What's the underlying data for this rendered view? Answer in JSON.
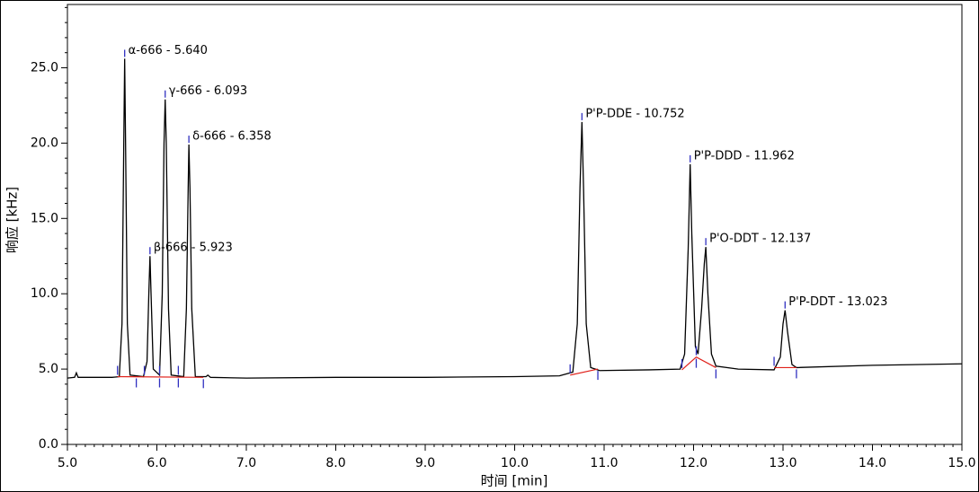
{
  "chart_data": {
    "type": "line",
    "x_label": "时间 [min]",
    "y_label": "响应 [kHz]",
    "xlim": [
      5,
      15
    ],
    "ylim": [
      0,
      29.2
    ],
    "xticks": [
      {
        "value": 5,
        "label": "5.0"
      },
      {
        "value": 6,
        "label": "6.0"
      },
      {
        "value": 7,
        "label": "7.0"
      },
      {
        "value": 8,
        "label": "8.0"
      },
      {
        "value": 9,
        "label": "9.0"
      },
      {
        "value": 10,
        "label": "10.0"
      },
      {
        "value": 11,
        "label": "11.0"
      },
      {
        "value": 12,
        "label": "12.0"
      },
      {
        "value": 13,
        "label": "13.0"
      },
      {
        "value": 14,
        "label": "14.0"
      },
      {
        "value": 15,
        "label": "15.0"
      }
    ],
    "yticks": [
      {
        "value": 0,
        "label": "0.0"
      },
      {
        "value": 5,
        "label": "5.0"
      },
      {
        "value": 10,
        "label": "10.0"
      },
      {
        "value": 15,
        "label": "15.0"
      },
      {
        "value": 20,
        "label": "20.0"
      },
      {
        "value": 25,
        "label": "25.0"
      }
    ],
    "series": [
      {
        "color": "#000000",
        "x": [
          5.0,
          5.08,
          5.1,
          5.12,
          5.5,
          5.58,
          5.61,
          5.63,
          5.64,
          5.65,
          5.67,
          5.7,
          5.85,
          5.89,
          5.91,
          5.923,
          5.935,
          5.96,
          6.03,
          6.06,
          6.08,
          6.093,
          6.105,
          6.13,
          6.16,
          6.3,
          6.33,
          6.35,
          6.358,
          6.37,
          6.39,
          6.43,
          6.55,
          6.57,
          6.6,
          7.0,
          8.0,
          9.0,
          10.0,
          10.5,
          10.65,
          10.7,
          10.73,
          10.752,
          10.77,
          10.8,
          10.85,
          10.95,
          11.5,
          11.85,
          11.9,
          11.94,
          11.962,
          11.98,
          12.02,
          12.05,
          12.09,
          12.12,
          12.137,
          12.16,
          12.2,
          12.25,
          12.5,
          12.9,
          12.97,
          13.0,
          13.023,
          13.05,
          13.1,
          13.15,
          14.0,
          15.0
        ],
        "values": [
          4.4,
          4.45,
          4.75,
          4.45,
          4.45,
          4.5,
          8,
          20,
          25.6,
          20,
          8,
          4.6,
          4.5,
          5.5,
          10,
          12.5,
          10,
          5,
          4.6,
          10,
          20,
          22.9,
          20,
          9,
          4.6,
          4.5,
          9,
          17,
          19.9,
          17,
          9,
          4.5,
          4.5,
          4.6,
          4.45,
          4.4,
          4.45,
          4.45,
          4.5,
          4.55,
          4.8,
          8,
          17,
          21.4,
          17,
          8,
          5.1,
          4.9,
          4.95,
          5.0,
          6,
          13,
          18.6,
          14,
          6.5,
          6,
          9,
          12,
          13.1,
          10,
          6,
          5.2,
          5.0,
          4.95,
          5.8,
          8,
          8.9,
          7.5,
          5.3,
          5.1,
          5.25,
          5.35
        ]
      },
      {
        "color": "#e0201a",
        "x": [
          5.56,
          6.52,
          null,
          10.62,
          10.93,
          null,
          11.87,
          12.03,
          12.25,
          null,
          12.9,
          13.15
        ],
        "values": [
          4.5,
          4.45,
          null,
          4.6,
          5.0,
          null,
          4.95,
          5.8,
          5.1,
          null,
          5.1,
          5.1
        ]
      }
    ],
    "boundaries": [
      {
        "x": 5.56,
        "y": 4.5,
        "side": "start"
      },
      {
        "x": 5.77,
        "y": 4.5,
        "side": "end"
      },
      {
        "x": 5.86,
        "y": 4.5,
        "side": "start"
      },
      {
        "x": 6.03,
        "y": 4.5,
        "side": "end"
      },
      {
        "x": 6.03,
        "y": 4.5,
        "side": "start"
      },
      {
        "x": 6.24,
        "y": 4.5,
        "side": "end"
      },
      {
        "x": 6.24,
        "y": 4.5,
        "side": "start"
      },
      {
        "x": 6.52,
        "y": 4.45,
        "side": "end"
      },
      {
        "x": 10.62,
        "y": 4.6,
        "side": "start"
      },
      {
        "x": 10.93,
        "y": 5.0,
        "side": "end"
      },
      {
        "x": 11.87,
        "y": 4.95,
        "side": "start"
      },
      {
        "x": 12.03,
        "y": 5.8,
        "side": "end"
      },
      {
        "x": 12.03,
        "y": 5.8,
        "side": "start"
      },
      {
        "x": 12.25,
        "y": 5.1,
        "side": "end"
      },
      {
        "x": 12.9,
        "y": 5.1,
        "side": "start"
      },
      {
        "x": 13.15,
        "y": 5.1,
        "side": "end"
      }
    ],
    "boundary_color": "#3030c0",
    "annotations": [
      {
        "text": "α-666 - 5.640",
        "x": 5.64,
        "y": 25.6
      },
      {
        "text": "β-666 - 5.923",
        "x": 5.923,
        "y": 12.5
      },
      {
        "text": "γ-666 - 6.093",
        "x": 6.093,
        "y": 22.9
      },
      {
        "text": "δ-666 - 6.358",
        "x": 6.358,
        "y": 19.9
      },
      {
        "text": "P'P-DDE - 10.752",
        "x": 10.752,
        "y": 21.4
      },
      {
        "text": "P'P-DDD - 11.962",
        "x": 11.962,
        "y": 18.6
      },
      {
        "text": "P'O-DDT - 12.137",
        "x": 12.137,
        "y": 13.1
      },
      {
        "text": "P'P-DDT - 13.023",
        "x": 13.023,
        "y": 8.9
      }
    ]
  }
}
